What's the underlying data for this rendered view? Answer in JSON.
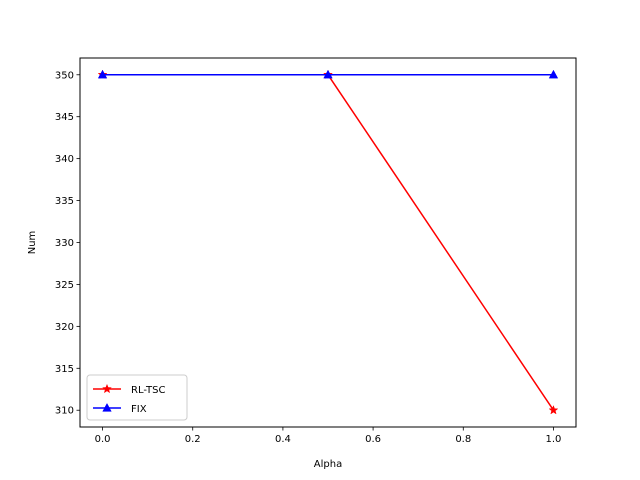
{
  "chart_data": {
    "type": "line",
    "title": "",
    "xlabel": "Alpha",
    "ylabel": "Num",
    "xlim": [
      -0.05,
      1.05
    ],
    "ylim": [
      308,
      352
    ],
    "xticks": [
      0.0,
      0.2,
      0.4,
      0.6,
      0.8,
      1.0
    ],
    "xtick_labels": [
      "0.0",
      "0.2",
      "0.4",
      "0.6",
      "0.8",
      "1.0"
    ],
    "yticks": [
      310,
      315,
      320,
      325,
      330,
      335,
      340,
      345,
      350
    ],
    "ytick_labels": [
      "310",
      "315",
      "320",
      "325",
      "330",
      "335",
      "340",
      "345",
      "350"
    ],
    "grid": false,
    "legend_position": "lower-left",
    "series": [
      {
        "name": "RL-TSC",
        "color": "#ff0000",
        "marker": "star",
        "x": [
          0.0,
          0.5,
          1.0
        ],
        "y": [
          350,
          350,
          310
        ]
      },
      {
        "name": "FIX",
        "color": "#0000ff",
        "marker": "triangle",
        "x": [
          0.0,
          0.5,
          1.0
        ],
        "y": [
          350,
          350,
          350
        ]
      }
    ]
  }
}
